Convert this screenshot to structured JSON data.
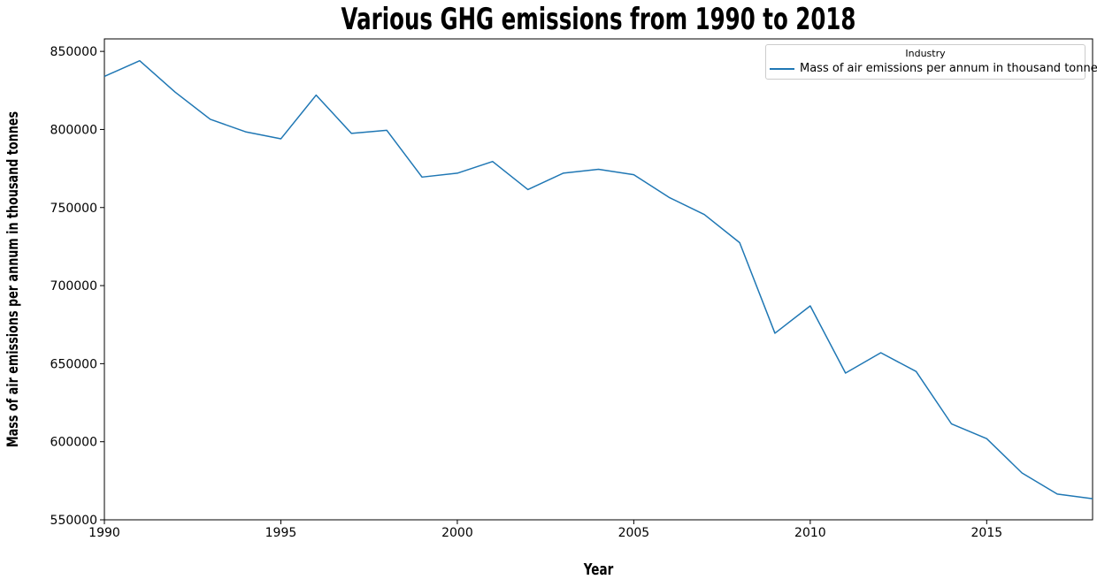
{
  "chart_data": {
    "type": "line",
    "title": "Various GHG emissions from 1990 to 2018",
    "xlabel": "Year",
    "ylabel": "Mass of air emissions per annum in thousand tonnes",
    "xlim": [
      1990,
      2018
    ],
    "ylim": [
      550000,
      858000
    ],
    "x_ticks": [
      1990,
      1995,
      2000,
      2005,
      2010,
      2015
    ],
    "y_ticks": [
      550000,
      600000,
      650000,
      700000,
      750000,
      800000,
      850000
    ],
    "grid": false,
    "legend": {
      "title": "Industry",
      "placement": "top-right"
    },
    "series": [
      {
        "name": "Mass of air emissions per annum in thousand tonnes",
        "color": "#1f77b4",
        "x": [
          1990,
          1991,
          1992,
          1993,
          1994,
          1995,
          1996,
          1997,
          1998,
          1999,
          2000,
          2001,
          2002,
          2003,
          2004,
          2005,
          2006,
          2007,
          2008,
          2009,
          2010,
          2011,
          2012,
          2013,
          2014,
          2015,
          2016,
          2017,
          2018
        ],
        "values": [
          834000,
          844000,
          824000,
          806500,
          798500,
          794000,
          822000,
          797500,
          799500,
          769500,
          772000,
          779500,
          761500,
          772000,
          774500,
          771000,
          756500,
          745500,
          727500,
          669500,
          687000,
          644000,
          657000,
          645000,
          611500,
          602000,
          580000,
          566500,
          563500
        ]
      }
    ]
  }
}
